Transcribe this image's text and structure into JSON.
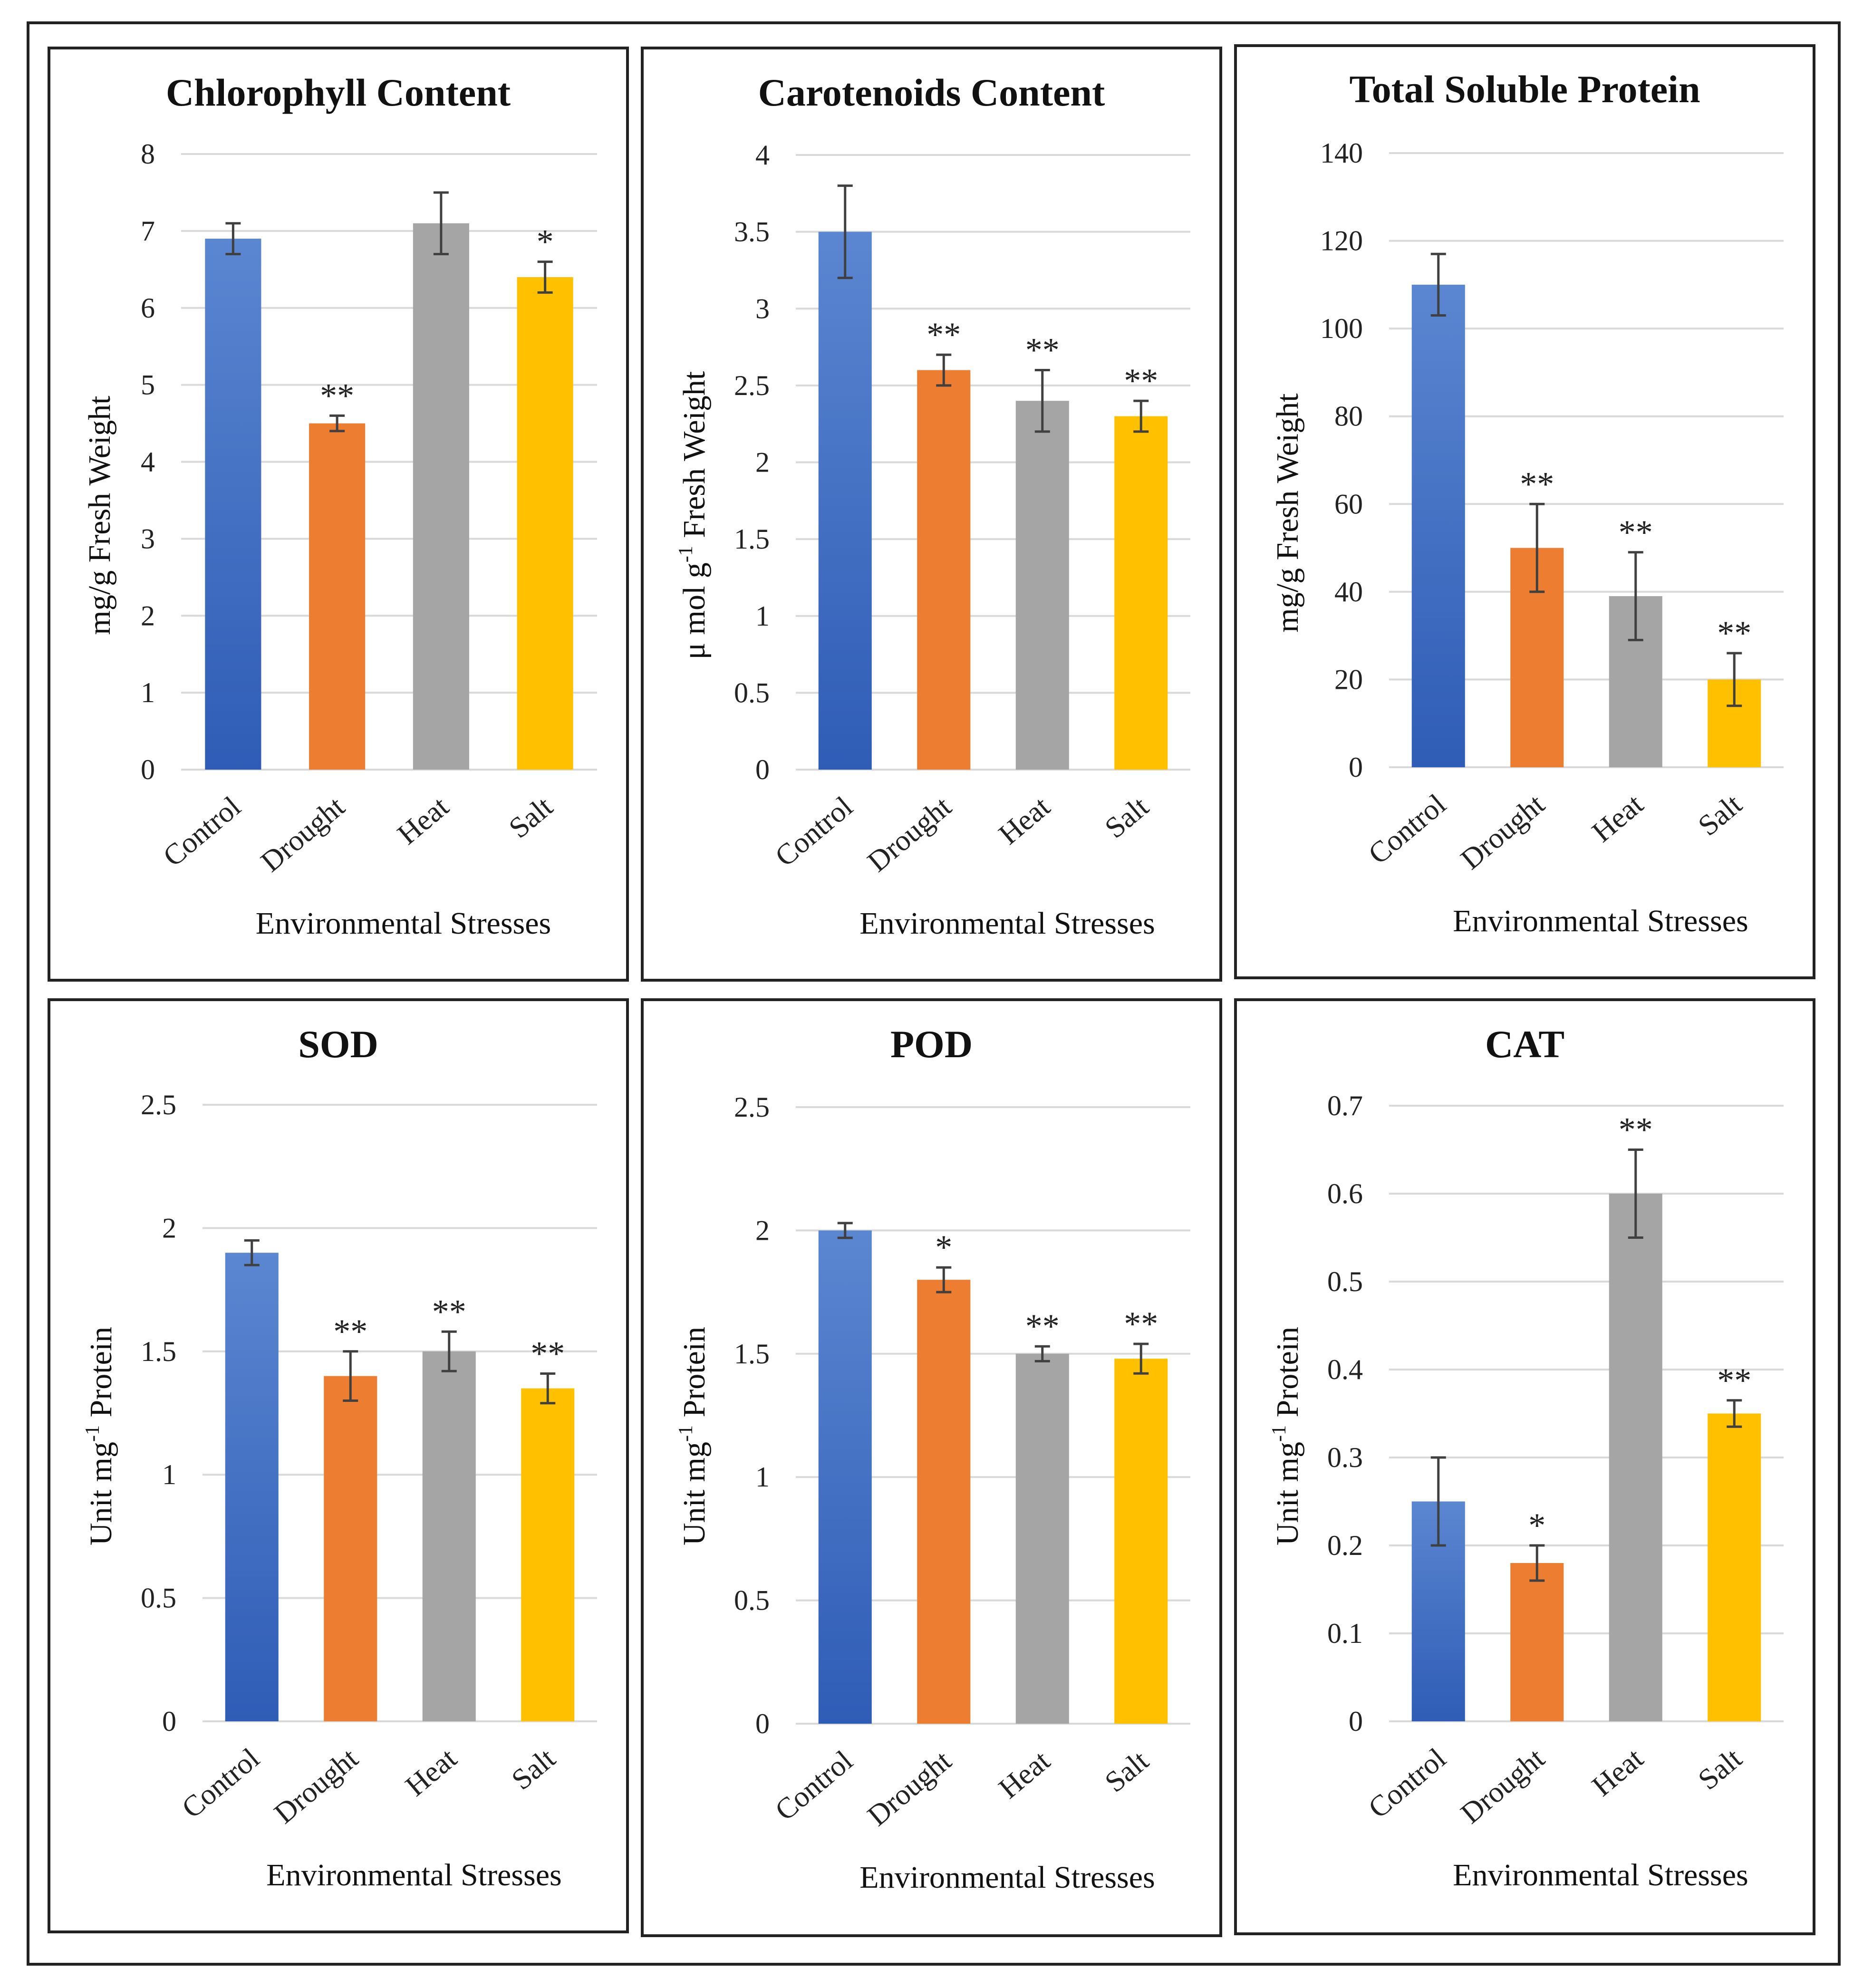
{
  "colors": {
    "control_top": "#5B86D1",
    "control_bottom": "#2F5CB6",
    "drought": "#ED7D31",
    "heat": "#A5A5A5",
    "salt": "#FFC000",
    "grid": "#D9D9D9",
    "errorbar": "#404040"
  },
  "chart_data": [
    {
      "type": "bar",
      "title": "Chlorophyll Content",
      "xlabel": "Environmental Stresses",
      "ylabel_main": "mg/g Fresh Weight",
      "ylabel_sup": "",
      "ylabel_tail": "",
      "categories": [
        "Control",
        "Drought",
        "Heat",
        "Salt"
      ],
      "values": [
        6.9,
        4.5,
        7.1,
        6.4
      ],
      "errors": [
        0.2,
        0.1,
        0.4,
        0.2
      ],
      "significance": [
        "",
        "**",
        "",
        "*"
      ],
      "ylim": [
        0,
        8
      ],
      "yticks": [
        0,
        1,
        2,
        3,
        4,
        5,
        6,
        7,
        8
      ],
      "ytick_labels": [
        "0",
        "1",
        "2",
        "3",
        "4",
        "5",
        "6",
        "7",
        "8"
      ],
      "grid": true
    },
    {
      "type": "bar",
      "title": "Carotenoids Content",
      "xlabel": "Environmental Stresses",
      "ylabel_main": "μ mol g",
      "ylabel_sup": "-1",
      "ylabel_tail": " Fresh Weight",
      "categories": [
        "Control",
        "Drought",
        "Heat",
        "Salt"
      ],
      "values": [
        3.5,
        2.6,
        2.4,
        2.3
      ],
      "errors": [
        0.3,
        0.1,
        0.2,
        0.1
      ],
      "significance": [
        "",
        "**",
        "**",
        "**"
      ],
      "ylim": [
        0,
        4
      ],
      "yticks": [
        0,
        0.5,
        1,
        1.5,
        2,
        2.5,
        3,
        3.5,
        4
      ],
      "ytick_labels": [
        "0",
        "0.5",
        "1",
        "1.5",
        "2",
        "2.5",
        "3",
        "3.5",
        "4"
      ],
      "grid": true
    },
    {
      "type": "bar",
      "title": "Total Soluble Protein",
      "xlabel": "Environmental Stresses",
      "ylabel_main": "mg/g Fresh Weight",
      "ylabel_sup": "",
      "ylabel_tail": "",
      "categories": [
        "Control",
        "Drought",
        "Heat",
        "Salt"
      ],
      "values": [
        110,
        50,
        39,
        20
      ],
      "errors": [
        7,
        10,
        10,
        6
      ],
      "significance": [
        "",
        "**",
        "**",
        "**"
      ],
      "ylim": [
        0,
        140
      ],
      "yticks": [
        0,
        20,
        40,
        60,
        80,
        100,
        120,
        140
      ],
      "ytick_labels": [
        "0",
        "20",
        "40",
        "60",
        "80",
        "100",
        "120",
        "140"
      ],
      "grid": true
    },
    {
      "type": "bar",
      "title": "SOD",
      "xlabel": "Environmental Stresses",
      "ylabel_main": "Unit mg",
      "ylabel_sup": "-1",
      "ylabel_tail": " Protein",
      "categories": [
        "Control",
        "Drought",
        "Heat",
        "Salt"
      ],
      "values": [
        1.9,
        1.4,
        1.5,
        1.35
      ],
      "errors": [
        0.05,
        0.1,
        0.08,
        0.06
      ],
      "significance": [
        "",
        "**",
        "**",
        "**"
      ],
      "ylim": [
        0,
        2.5
      ],
      "yticks": [
        0,
        0.5,
        1,
        1.5,
        2,
        2.5
      ],
      "ytick_labels": [
        "0",
        "0.5",
        "1",
        "1.5",
        "2",
        "2.5"
      ],
      "grid": true
    },
    {
      "type": "bar",
      "title": "POD",
      "xlabel": "Environmental Stresses",
      "ylabel_main": "Unit mg",
      "ylabel_sup": "-1",
      "ylabel_tail": " Protein",
      "categories": [
        "Control",
        "Drought",
        "Heat",
        "Salt"
      ],
      "values": [
        2.0,
        1.8,
        1.5,
        1.48
      ],
      "errors": [
        0.03,
        0.05,
        0.03,
        0.06
      ],
      "significance": [
        "",
        "*",
        "**",
        "**"
      ],
      "ylim": [
        0,
        2.5
      ],
      "yticks": [
        0,
        0.5,
        1,
        1.5,
        2,
        2.5
      ],
      "ytick_labels": [
        "0",
        "0.5",
        "1",
        "1.5",
        "2",
        "2.5"
      ],
      "grid": true
    },
    {
      "type": "bar",
      "title": "CAT",
      "xlabel": "Environmental Stresses",
      "ylabel_main": "Unit mg",
      "ylabel_sup": "-1",
      "ylabel_tail": " Protein",
      "categories": [
        "Control",
        "Drought",
        "Heat",
        "Salt"
      ],
      "values": [
        0.25,
        0.18,
        0.6,
        0.35
      ],
      "errors": [
        0.05,
        0.02,
        0.05,
        0.015
      ],
      "significance": [
        "",
        "*",
        "**",
        "**"
      ],
      "ylim": [
        0,
        0.7
      ],
      "yticks": [
        0,
        0.1,
        0.2,
        0.3,
        0.4,
        0.5,
        0.6,
        0.7
      ],
      "ytick_labels": [
        "0",
        "0.1",
        "0.2",
        "0.3",
        "0.4",
        "0.5",
        "0.6",
        "0.7"
      ],
      "grid": true
    }
  ]
}
